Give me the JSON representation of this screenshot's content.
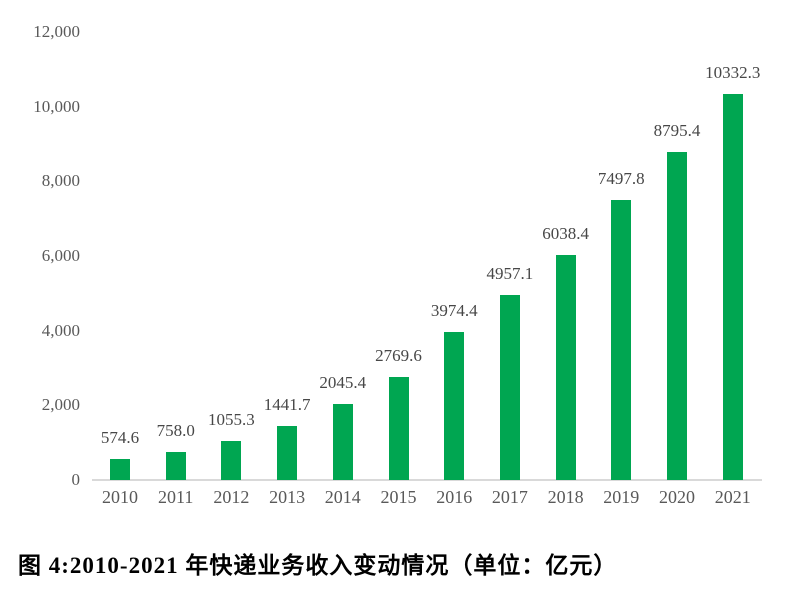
{
  "figure": {
    "caption": "图 4:2010-2021 年快递业务收入变动情况（单位：亿元）"
  },
  "chart_data": {
    "type": "bar",
    "title": "图 4:2010-2021 年快递业务收入变动情况（单位：亿元）",
    "unit_label": "亿元",
    "categories": [
      "2010",
      "2011",
      "2012",
      "2013",
      "2014",
      "2015",
      "2016",
      "2017",
      "2018",
      "2019",
      "2020",
      "2021"
    ],
    "values": [
      574.6,
      758.0,
      1055.3,
      1441.7,
      2045.4,
      2769.6,
      3974.4,
      4957.1,
      6038.4,
      7497.8,
      8795.4,
      10332.3
    ],
    "value_labels": [
      "574.6",
      "758.0",
      "1055.3",
      "1441.7",
      "2045.4",
      "2769.6",
      "3974.4",
      "4957.1",
      "6038.4",
      "7497.8",
      "8795.4",
      "10332.3"
    ],
    "xlabel": "",
    "ylabel": "",
    "ylim": [
      0,
      12000
    ],
    "y_tick_values": [
      0,
      2000,
      4000,
      6000,
      8000,
      10000,
      12000
    ],
    "y_tick_labels": [
      "0",
      "2,000",
      "4,000",
      "6,000",
      "8,000",
      "10,000",
      "12,000"
    ],
    "grid": false,
    "legend_position": "none",
    "colors": {
      "bar": "#00A651",
      "axis_line": "#d9d9d9",
      "tick_text": "#595959",
      "value_text": "#474747",
      "caption_text": "#000000"
    }
  }
}
